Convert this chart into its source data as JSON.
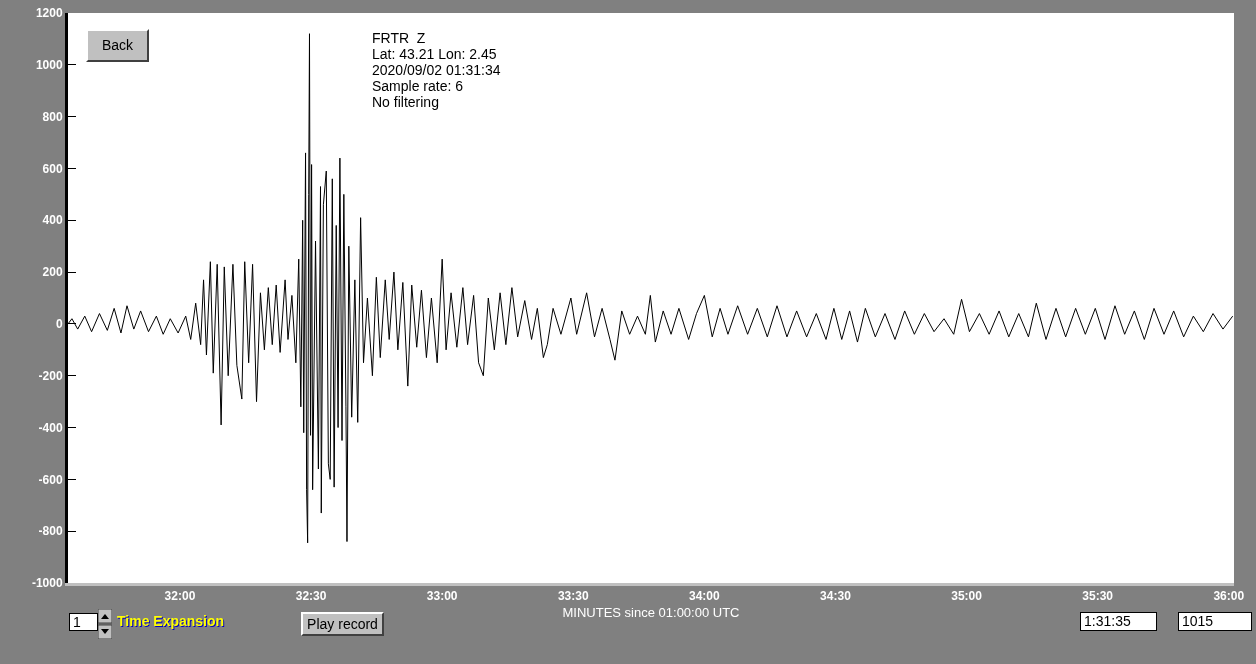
{
  "chart_data": {
    "type": "line",
    "xlabel": "MINUTES since 01:00:00 UTC",
    "annotations": [
      "FRTR  Z",
      "Lat: 43.21 Lon: 2.45",
      "2020/09/02 01:31:34",
      "Sample rate: 6",
      "No filtering",
      "Back",
      "1",
      "Time Expansion",
      "Play record",
      "1:31:35",
      "1015"
    ],
    "xlim": [
      31.573,
      36.02
    ],
    "ylim": [
      -1000,
      1200
    ],
    "xticks": [
      {
        "value": 32,
        "label": "32:00"
      },
      {
        "value": 32.5,
        "label": "32:30"
      },
      {
        "value": 33,
        "label": "33:00"
      },
      {
        "value": 33.5,
        "label": "33:30"
      },
      {
        "value": 34,
        "label": "34:00"
      },
      {
        "value": 34.5,
        "label": "34:30"
      },
      {
        "value": 35,
        "label": "35:00"
      },
      {
        "value": 35.5,
        "label": "35:30"
      },
      {
        "value": 36,
        "label": "36:00"
      }
    ],
    "yticks": [
      -1000,
      -800,
      -600,
      -400,
      -200,
      0,
      200,
      400,
      600,
      800,
      1000,
      1200
    ],
    "series": [
      {
        "color": "#000000",
        "x": [
          31.573,
          31.588,
          31.61,
          31.637,
          31.663,
          31.693,
          31.723,
          31.749,
          31.775,
          31.798,
          31.824,
          31.85,
          31.88,
          31.91,
          31.936,
          31.963,
          31.993,
          32.022,
          32.041,
          32.06,
          32.079,
          32.09,
          32.101,
          32.116,
          32.127,
          32.142,
          32.157,
          32.169,
          32.184,
          32.202,
          32.217,
          32.236,
          32.247,
          32.262,
          32.277,
          32.292,
          32.307,
          32.322,
          32.337,
          32.352,
          32.367,
          32.382,
          32.401,
          32.412,
          32.427,
          32.442,
          32.453,
          32.461,
          32.468,
          32.472,
          32.479,
          32.483,
          32.487,
          32.491,
          32.494,
          32.498,
          32.502,
          32.506,
          32.517,
          32.528,
          32.536,
          32.539,
          32.547,
          32.558,
          32.566,
          32.573,
          32.581,
          32.588,
          32.596,
          32.603,
          32.61,
          32.618,
          32.625,
          32.633,
          32.637,
          32.644,
          32.655,
          32.667,
          32.678,
          32.689,
          32.7,
          32.715,
          32.734,
          32.749,
          32.764,
          32.783,
          32.798,
          32.816,
          32.831,
          32.85,
          32.869,
          32.884,
          32.903,
          32.921,
          32.94,
          32.959,
          32.981,
          33.0,
          33.015,
          33.034,
          33.056,
          33.079,
          33.097,
          33.12,
          33.139,
          33.157,
          33.176,
          33.199,
          33.221,
          33.243,
          33.266,
          33.288,
          33.315,
          33.341,
          33.363,
          33.386,
          33.401,
          33.423,
          33.453,
          33.491,
          33.513,
          33.551,
          33.581,
          33.61,
          33.64,
          33.659,
          33.685,
          33.715,
          33.745,
          33.775,
          33.794,
          33.813,
          33.843,
          33.873,
          33.903,
          33.94,
          33.97,
          34.0,
          34.03,
          34.06,
          34.09,
          34.127,
          34.165,
          34.202,
          34.24,
          34.277,
          34.315,
          34.352,
          34.39,
          34.427,
          34.464,
          34.494,
          34.524,
          34.554,
          34.584,
          34.614,
          34.652,
          34.689,
          34.727,
          34.764,
          34.801,
          34.839,
          34.876,
          34.914,
          34.951,
          34.981,
          35.011,
          35.049,
          35.086,
          35.124,
          35.161,
          35.199,
          35.236,
          35.266,
          35.303,
          35.341,
          35.378,
          35.416,
          35.453,
          35.491,
          35.528,
          35.566,
          35.603,
          35.64,
          35.678,
          35.715,
          35.753,
          35.79,
          35.828,
          35.865,
          35.903,
          35.94,
          35.978,
          36.015
        ],
        "values": [
          0,
          20,
          -20,
          30,
          -30,
          40,
          -25,
          60,
          -35,
          70,
          -20,
          50,
          -30,
          30,
          -40,
          20,
          -35,
          30,
          -60,
          80,
          -80,
          170,
          -120,
          240,
          -190,
          230,
          -390,
          220,
          -200,
          230,
          -160,
          -290,
          240,
          -150,
          230,
          -300,
          120,
          -100,
          140,
          -80,
          150,
          -110,
          170,
          -60,
          110,
          -150,
          250,
          -320,
          400,
          -420,
          660,
          -640,
          -845,
          500,
          1120,
          -430,
          615,
          -640,
          320,
          -560,
          530,
          -730,
          460,
          590,
          -540,
          -600,
          560,
          -630,
          380,
          -400,
          640,
          -450,
          500,
          -320,
          -840,
          300,
          -360,
          170,
          -380,
          410,
          -150,
          100,
          -200,
          180,
          -130,
          170,
          -60,
          200,
          -100,
          160,
          -240,
          150,
          -90,
          130,
          -130,
          100,
          -150,
          250,
          -100,
          120,
          -90,
          140,
          -80,
          110,
          -150,
          -200,
          100,
          -100,
          120,
          -80,
          140,
          -50,
          90,
          -60,
          60,
          -130,
          -80,
          60,
          -40,
          100,
          -40,
          120,
          -50,
          60,
          -60,
          -140,
          50,
          -40,
          30,
          -40,
          110,
          -70,
          50,
          -40,
          60,
          -60,
          40,
          110,
          -50,
          60,
          -40,
          70,
          -40,
          60,
          -50,
          70,
          -50,
          50,
          -50,
          40,
          -60,
          60,
          -60,
          50,
          -70,
          60,
          -50,
          40,
          -60,
          50,
          -40,
          40,
          -30,
          20,
          -40,
          95,
          -30,
          40,
          -40,
          50,
          -50,
          40,
          -50,
          80,
          -60,
          60,
          -50,
          60,
          -40,
          60,
          -60,
          70,
          -40,
          50,
          -60,
          60,
          -40,
          50,
          -50,
          30,
          -30,
          40,
          -20,
          30
        ]
      }
    ]
  }
}
